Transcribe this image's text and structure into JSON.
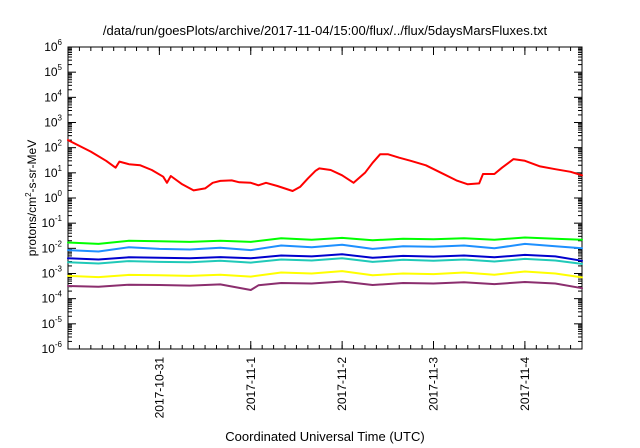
{
  "chart_data": {
    "type": "line",
    "title": "/data/run/goesPlots/archive/2017-11-04/15:00/flux/../flux/5daysMarsFluxes.txt",
    "xlabel": "Coordinated Universal Time (UTC)",
    "ylabel": {
      "prefix": "protons/cm",
      "superscript": "2",
      "suffix": "-s-sr-MeV"
    },
    "yscale": "log",
    "ylim_exponents": [
      -6,
      6
    ],
    "yticks": [
      {
        "base": "10",
        "exp": "6"
      },
      {
        "base": "10",
        "exp": "5"
      },
      {
        "base": "10",
        "exp": "4"
      },
      {
        "base": "10",
        "exp": "3"
      },
      {
        "base": "10",
        "exp": "2"
      },
      {
        "base": "10",
        "exp": "1"
      },
      {
        "base": "10",
        "exp": "0"
      },
      {
        "base": "10",
        "exp": "-1"
      },
      {
        "base": "10",
        "exp": "-2"
      },
      {
        "base": "10",
        "exp": "-3"
      },
      {
        "base": "10",
        "exp": "-4"
      },
      {
        "base": "10",
        "exp": "-5"
      },
      {
        "base": "10",
        "exp": "-6"
      }
    ],
    "xlim": [
      "2017-10-30T00:00",
      "2017-11-04T15:00"
    ],
    "xticks": [
      {
        "label": "2017-10-31",
        "t": "2017-10-31T00:00"
      },
      {
        "label": "2017-11-1",
        "t": "2017-11-01T00:00"
      },
      {
        "label": "2017-11-2",
        "t": "2017-11-02T00:00"
      },
      {
        "label": "2017-11-3",
        "t": "2017-11-03T00:00"
      },
      {
        "label": "2017-11-4",
        "t": "2017-11-04T00:00"
      }
    ],
    "grid": false,
    "legend": "none",
    "series": [
      {
        "color": "#ff0000",
        "points": [
          [
            "2017-10-30T00:00",
            200
          ],
          [
            "2017-10-30T06:00",
            70
          ],
          [
            "2017-10-30T10:00",
            30
          ],
          [
            "2017-10-30T12:30",
            16
          ],
          [
            "2017-10-30T13:30",
            28
          ],
          [
            "2017-10-30T16:00",
            22
          ],
          [
            "2017-10-30T19:00",
            20
          ],
          [
            "2017-10-30T22:00",
            13
          ],
          [
            "2017-10-31T01:00",
            7
          ],
          [
            "2017-10-31T02:00",
            4
          ],
          [
            "2017-10-31T03:00",
            7.5
          ],
          [
            "2017-10-31T06:00",
            3.5
          ],
          [
            "2017-10-31T09:00",
            2
          ],
          [
            "2017-10-31T12:00",
            2.4
          ],
          [
            "2017-10-31T14:00",
            4
          ],
          [
            "2017-10-31T16:00",
            4.8
          ],
          [
            "2017-10-31T19:00",
            5
          ],
          [
            "2017-10-31T21:00",
            4.2
          ],
          [
            "2017-11-01T00:00",
            4
          ],
          [
            "2017-11-01T02:00",
            3.2
          ],
          [
            "2017-11-01T04:00",
            4
          ],
          [
            "2017-11-01T07:00",
            3
          ],
          [
            "2017-11-01T11:00",
            1.9
          ],
          [
            "2017-11-01T13:00",
            2.8
          ],
          [
            "2017-11-01T15:00",
            6
          ],
          [
            "2017-11-01T17:00",
            12
          ],
          [
            "2017-11-01T18:00",
            15
          ],
          [
            "2017-11-01T21:00",
            13
          ],
          [
            "2017-11-02T00:00",
            8
          ],
          [
            "2017-11-02T03:00",
            4
          ],
          [
            "2017-11-02T06:00",
            10
          ],
          [
            "2017-11-02T08:00",
            25
          ],
          [
            "2017-11-02T10:00",
            55
          ],
          [
            "2017-11-02T12:00",
            55
          ],
          [
            "2017-11-02T15:00",
            40
          ],
          [
            "2017-11-02T18:00",
            30
          ],
          [
            "2017-11-02T22:00",
            20
          ],
          [
            "2017-11-03T02:00",
            10
          ],
          [
            "2017-11-03T06:00",
            5
          ],
          [
            "2017-11-03T09:00",
            3.5
          ],
          [
            "2017-11-03T12:00",
            3.8
          ],
          [
            "2017-11-03T13:00",
            9
          ],
          [
            "2017-11-03T16:00",
            9
          ],
          [
            "2017-11-03T18:00",
            16
          ],
          [
            "2017-11-03T21:00",
            35
          ],
          [
            "2017-11-04T00:00",
            30
          ],
          [
            "2017-11-04T04:00",
            18
          ],
          [
            "2017-11-04T08:00",
            14
          ],
          [
            "2017-11-04T12:00",
            11
          ],
          [
            "2017-11-04T15:00",
            8
          ]
        ]
      },
      {
        "color": "#00ff00",
        "points": [
          [
            "2017-10-30T00:00",
            0.017
          ],
          [
            "2017-10-30T08:00",
            0.015
          ],
          [
            "2017-10-30T16:00",
            0.02
          ],
          [
            "2017-10-31T00:00",
            0.019
          ],
          [
            "2017-10-31T08:00",
            0.018
          ],
          [
            "2017-10-31T16:00",
            0.02
          ],
          [
            "2017-11-01T00:00",
            0.018
          ],
          [
            "2017-11-01T08:00",
            0.025
          ],
          [
            "2017-11-01T16:00",
            0.022
          ],
          [
            "2017-11-02T00:00",
            0.026
          ],
          [
            "2017-11-02T08:00",
            0.021
          ],
          [
            "2017-11-02T16:00",
            0.024
          ],
          [
            "2017-11-03T00:00",
            0.023
          ],
          [
            "2017-11-03T08:00",
            0.025
          ],
          [
            "2017-11-03T16:00",
            0.022
          ],
          [
            "2017-11-04T00:00",
            0.027
          ],
          [
            "2017-11-04T08:00",
            0.024
          ],
          [
            "2017-11-04T15:00",
            0.022
          ]
        ]
      },
      {
        "color": "#1e90ff",
        "points": [
          [
            "2017-10-30T00:00",
            0.0085
          ],
          [
            "2017-10-30T08:00",
            0.0075
          ],
          [
            "2017-10-30T16:00",
            0.011
          ],
          [
            "2017-10-31T00:00",
            0.0095
          ],
          [
            "2017-10-31T08:00",
            0.009
          ],
          [
            "2017-10-31T16:00",
            0.0105
          ],
          [
            "2017-11-01T00:00",
            0.0085
          ],
          [
            "2017-11-01T08:00",
            0.013
          ],
          [
            "2017-11-01T16:00",
            0.011
          ],
          [
            "2017-11-02T00:00",
            0.014
          ],
          [
            "2017-11-02T08:00",
            0.0095
          ],
          [
            "2017-11-02T16:00",
            0.012
          ],
          [
            "2017-11-03T00:00",
            0.0115
          ],
          [
            "2017-11-03T08:00",
            0.013
          ],
          [
            "2017-11-03T16:00",
            0.01
          ],
          [
            "2017-11-04T00:00",
            0.015
          ],
          [
            "2017-11-04T08:00",
            0.012
          ],
          [
            "2017-11-04T15:00",
            0.01
          ]
        ]
      },
      {
        "color": "#0000cd",
        "points": [
          [
            "2017-10-30T00:00",
            0.004
          ],
          [
            "2017-10-30T08:00",
            0.0036
          ],
          [
            "2017-10-30T16:00",
            0.0044
          ],
          [
            "2017-10-31T00:00",
            0.0042
          ],
          [
            "2017-10-31T08:00",
            0.004
          ],
          [
            "2017-10-31T16:00",
            0.0045
          ],
          [
            "2017-11-01T00:00",
            0.004
          ],
          [
            "2017-11-01T08:00",
            0.0052
          ],
          [
            "2017-11-01T16:00",
            0.0048
          ],
          [
            "2017-11-02T00:00",
            0.0058
          ],
          [
            "2017-11-02T08:00",
            0.0042
          ],
          [
            "2017-11-02T16:00",
            0.005
          ],
          [
            "2017-11-03T00:00",
            0.0047
          ],
          [
            "2017-11-03T08:00",
            0.0052
          ],
          [
            "2017-11-03T16:00",
            0.0044
          ],
          [
            "2017-11-04T00:00",
            0.0055
          ],
          [
            "2017-11-04T08:00",
            0.0048
          ],
          [
            "2017-11-04T15:00",
            0.0032
          ]
        ]
      },
      {
        "color": "#20c9b8",
        "points": [
          [
            "2017-10-30T00:00",
            0.0028
          ],
          [
            "2017-10-30T08:00",
            0.0025
          ],
          [
            "2017-10-30T16:00",
            0.0031
          ],
          [
            "2017-10-31T00:00",
            0.0029
          ],
          [
            "2017-10-31T08:00",
            0.0028
          ],
          [
            "2017-10-31T16:00",
            0.0032
          ],
          [
            "2017-11-01T00:00",
            0.0027
          ],
          [
            "2017-11-01T08:00",
            0.0036
          ],
          [
            "2017-11-01T16:00",
            0.0033
          ],
          [
            "2017-11-02T00:00",
            0.004
          ],
          [
            "2017-11-02T08:00",
            0.0029
          ],
          [
            "2017-11-02T16:00",
            0.0035
          ],
          [
            "2017-11-03T00:00",
            0.0032
          ],
          [
            "2017-11-03T08:00",
            0.0036
          ],
          [
            "2017-11-03T16:00",
            0.003
          ],
          [
            "2017-11-04T00:00",
            0.0038
          ],
          [
            "2017-11-04T08:00",
            0.0033
          ],
          [
            "2017-11-04T15:00",
            0.0024
          ]
        ]
      },
      {
        "color": "#ffff00",
        "points": [
          [
            "2017-10-30T00:00",
            0.0008
          ],
          [
            "2017-10-30T08:00",
            0.00072
          ],
          [
            "2017-10-30T16:00",
            0.00088
          ],
          [
            "2017-10-31T00:00",
            0.00085
          ],
          [
            "2017-10-31T08:00",
            0.0008
          ],
          [
            "2017-10-31T16:00",
            0.0009
          ],
          [
            "2017-11-01T00:00",
            0.00075
          ],
          [
            "2017-11-01T08:00",
            0.0011
          ],
          [
            "2017-11-01T16:00",
            0.001
          ],
          [
            "2017-11-02T00:00",
            0.00125
          ],
          [
            "2017-11-02T08:00",
            0.00085
          ],
          [
            "2017-11-02T16:00",
            0.001
          ],
          [
            "2017-11-03T00:00",
            0.00095
          ],
          [
            "2017-11-03T08:00",
            0.0011
          ],
          [
            "2017-11-03T16:00",
            0.0009
          ],
          [
            "2017-11-04T00:00",
            0.0012
          ],
          [
            "2017-11-04T08:00",
            0.001
          ],
          [
            "2017-11-04T15:00",
            0.0007
          ]
        ]
      },
      {
        "color": "#8b2e6e",
        "points": [
          [
            "2017-10-30T00:00",
            0.00032
          ],
          [
            "2017-10-30T08:00",
            0.0003
          ],
          [
            "2017-10-30T16:00",
            0.00036
          ],
          [
            "2017-10-31T00:00",
            0.00035
          ],
          [
            "2017-10-31T08:00",
            0.00033
          ],
          [
            "2017-10-31T16:00",
            0.00037
          ],
          [
            "2017-11-01T00:00",
            0.00022
          ],
          [
            "2017-11-01T02:00",
            0.00034
          ],
          [
            "2017-11-01T08:00",
            0.00042
          ],
          [
            "2017-11-01T16:00",
            0.0004
          ],
          [
            "2017-11-02T00:00",
            0.00048
          ],
          [
            "2017-11-02T08:00",
            0.00035
          ],
          [
            "2017-11-02T16:00",
            0.00042
          ],
          [
            "2017-11-03T00:00",
            0.0004
          ],
          [
            "2017-11-03T08:00",
            0.00045
          ],
          [
            "2017-11-03T16:00",
            0.00038
          ],
          [
            "2017-11-04T00:00",
            0.00046
          ],
          [
            "2017-11-04T08:00",
            0.0004
          ],
          [
            "2017-11-04T15:00",
            0.00026
          ]
        ]
      }
    ]
  }
}
